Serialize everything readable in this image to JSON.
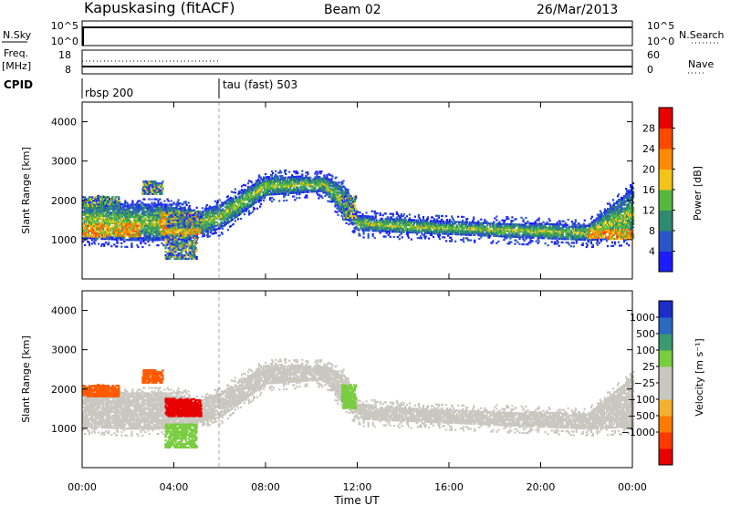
{
  "header": {
    "station": "Kapuskasing (fitACF)",
    "beam": "Beam 02",
    "date": "26/Mar/2013"
  },
  "status_panels": {
    "nsky_label": "N.Sky",
    "nsky_ticks": [
      "10^5",
      "10^0"
    ],
    "nsearch_ticks": [
      "10^5",
      "10^0"
    ],
    "nsearch_label": "N.Search",
    "freq_label_1": "Freq.",
    "freq_label_2": "[MHz]",
    "freq_ticks": [
      "18",
      "8"
    ],
    "nave_ticks": [
      "60",
      "0"
    ],
    "nave_label": "Nave",
    "cpid_label": "CPID",
    "cpid_modes": [
      {
        "name": "rbsp 200",
        "start_hour": 0
      },
      {
        "name": "tau (fast) 503",
        "start_hour": 6
      }
    ]
  },
  "panels": {
    "power_ylabel": "Slant Range [km]",
    "velocity_ylabel": "Slant Range [km]",
    "xlabel": "Time UT",
    "x_ticks": [
      "00:00",
      "04:00",
      "08:00",
      "12:00",
      "16:00",
      "20:00",
      "00:00"
    ],
    "y_ticks": [
      "1000",
      "2000",
      "3000",
      "4000"
    ]
  },
  "power_colorbar": {
    "label": "Power [dB]",
    "ticks": [
      "4",
      "8",
      "12",
      "16",
      "20",
      "24",
      "28"
    ],
    "colors": [
      "#1c1cff",
      "#2a55c8",
      "#2e8a70",
      "#55b840",
      "#f2c418",
      "#ff8a00",
      "#ff4a00",
      "#e60000"
    ]
  },
  "velocity_colorbar": {
    "label": "Velocity [m s⁻¹]",
    "ticks": [
      "1000",
      "500",
      "100",
      "25",
      "−25",
      "−100",
      "−500",
      "−1000"
    ],
    "colors": [
      "#1c2ec8",
      "#2a6ac0",
      "#3a9a70",
      "#7acc40",
      "#c8c8c0",
      "#c8c8c0",
      "#f5b030",
      "#ff7a00",
      "#ff3a00",
      "#e60000"
    ]
  },
  "chart_data": {
    "type": "heatmap",
    "x_range_hours": [
      0,
      24
    ],
    "y_range_km": [
      0,
      4500
    ],
    "echo_band": [
      {
        "hour": 0,
        "lower_km": 1000,
        "upper_km": 2000
      },
      {
        "hour": 2,
        "lower_km": 950,
        "upper_km": 1900
      },
      {
        "hour": 4,
        "lower_km": 950,
        "upper_km": 1900
      },
      {
        "hour": 5,
        "lower_km": 1100,
        "upper_km": 1700
      },
      {
        "hour": 6,
        "lower_km": 1250,
        "upper_km": 1900
      },
      {
        "hour": 8,
        "lower_km": 2100,
        "upper_km": 2600
      },
      {
        "hour": 10.5,
        "lower_km": 2200,
        "upper_km": 2600
      },
      {
        "hour": 11.5,
        "lower_km": 1500,
        "upper_km": 2300
      },
      {
        "hour": 12,
        "lower_km": 1200,
        "upper_km": 1600
      },
      {
        "hour": 16,
        "lower_km": 1100,
        "upper_km": 1450
      },
      {
        "hour": 20,
        "lower_km": 1000,
        "upper_km": 1400
      },
      {
        "hour": 22,
        "lower_km": 950,
        "upper_km": 1350
      },
      {
        "hour": 24,
        "lower_km": 1000,
        "upper_km": 2300
      }
    ],
    "high_power_segments": [
      {
        "hour_start": 0,
        "hour_end": 2.5,
        "lower_km": 1050,
        "upper_km": 1400,
        "power_db": 20
      },
      {
        "hour_start": 3.4,
        "hour_end": 5.2,
        "lower_km": 1100,
        "upper_km": 1700,
        "power_db": 22
      },
      {
        "hour_start": 22,
        "hour_end": 24,
        "lower_km": 1000,
        "upper_km": 1250,
        "power_db": 20
      }
    ],
    "velocity_patches": [
      {
        "hour_start": 0,
        "hour_end": 1.6,
        "lower_km": 1800,
        "upper_km": 2100,
        "velocity": -500
      },
      {
        "hour_start": 2.6,
        "hour_end": 3.5,
        "lower_km": 2150,
        "upper_km": 2500,
        "velocity": -500
      },
      {
        "hour_start": 3.6,
        "hour_end": 5.2,
        "lower_km": 1300,
        "upper_km": 1750,
        "velocity": -1000
      },
      {
        "hour_start": 3.6,
        "hour_end": 5.0,
        "lower_km": 500,
        "upper_km": 1100,
        "velocity": 100
      },
      {
        "hour_start": 11.3,
        "hour_end": 11.9,
        "lower_km": 1500,
        "upper_km": 2100,
        "velocity": 100
      }
    ]
  }
}
